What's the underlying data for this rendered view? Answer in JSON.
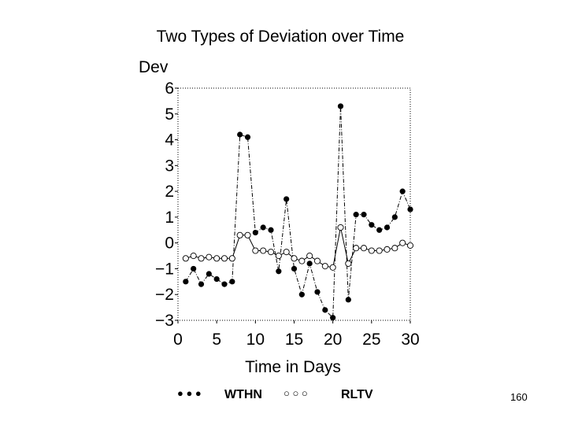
{
  "slide": {
    "number": "160"
  },
  "chart_data": {
    "type": "line",
    "title": "Two Types of Deviation over Time",
    "xlabel": "Time in Days",
    "ylabel": "Dev",
    "xlim": [
      0,
      30
    ],
    "ylim": [
      -3,
      6
    ],
    "x_ticks": [
      0,
      5,
      10,
      15,
      20,
      25,
      30
    ],
    "y_ticks": [
      6,
      5,
      4,
      3,
      2,
      1,
      0,
      -1,
      -2,
      -3
    ],
    "y_tick_labels": [
      "6",
      "5",
      "4",
      "3",
      "2",
      "1",
      "0",
      "−1",
      "−2",
      "−3"
    ],
    "x": [
      1,
      2,
      3,
      4,
      5,
      6,
      7,
      8,
      9,
      10,
      11,
      12,
      13,
      14,
      15,
      16,
      17,
      18,
      19,
      20,
      21,
      22,
      23,
      24,
      25,
      26,
      27,
      28,
      29,
      30
    ],
    "series": [
      {
        "name": "WTHN",
        "marker": "filled-circle",
        "line_style": "dash-dot",
        "values": [
          -1.5,
          -1.0,
          -1.6,
          -1.2,
          -1.4,
          -1.6,
          -1.5,
          4.2,
          4.1,
          0.4,
          0.6,
          0.5,
          -1.1,
          1.7,
          -1.0,
          -2.0,
          -0.8,
          -1.9,
          -2.6,
          -2.9,
          5.3,
          -2.2,
          1.1,
          1.1,
          0.7,
          0.5,
          0.6,
          1.0,
          2.0,
          1.3
        ]
      },
      {
        "name": "RLTV",
        "marker": "open-circle",
        "line_style": "solid",
        "values": [
          -0.6,
          -0.5,
          -0.6,
          -0.55,
          -0.6,
          -0.6,
          -0.6,
          0.3,
          0.3,
          -0.3,
          -0.3,
          -0.35,
          -0.5,
          -0.35,
          -0.6,
          -0.7,
          -0.5,
          -0.7,
          -0.9,
          -0.95,
          0.6,
          -0.8,
          -0.2,
          -0.2,
          -0.3,
          -0.3,
          -0.25,
          -0.2,
          0.0,
          -0.1
        ]
      }
    ],
    "legend": {
      "placement": "bottom",
      "entries": [
        {
          "series": "WTHN",
          "label": "WTHN",
          "symbol": "● ● ●"
        },
        {
          "series": "RLTV",
          "label": "RLTV",
          "symbol": "○ ○ ○"
        }
      ]
    }
  }
}
